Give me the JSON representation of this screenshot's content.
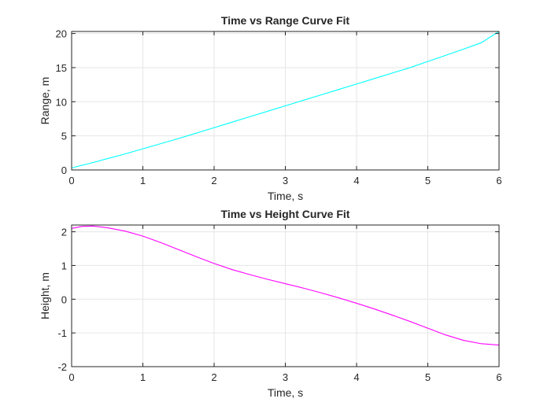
{
  "chart_data": [
    {
      "type": "line",
      "title": "Time vs Range Curve Fit",
      "xlabel": "Time, s",
      "ylabel": "Range, m",
      "xlim": [
        0,
        6
      ],
      "ylim": [
        0,
        20.3
      ],
      "xticks": [
        "0",
        "1",
        "2",
        "3",
        "4",
        "5",
        "6"
      ],
      "yticks": [
        "0",
        "5",
        "10",
        "15",
        "20"
      ],
      "grid": true,
      "series": [
        {
          "color": "#00ffff",
          "x": [
            0,
            0.25,
            0.5,
            0.75,
            1,
            1.25,
            1.5,
            1.75,
            2,
            2.25,
            2.5,
            2.75,
            3,
            3.25,
            3.5,
            3.75,
            4,
            4.25,
            4.5,
            4.75,
            5,
            5.25,
            5.5,
            5.75,
            6
          ],
          "y": [
            0.3,
            0.95,
            1.65,
            2.35,
            3.1,
            3.85,
            4.6,
            5.4,
            6.2,
            7.0,
            7.8,
            8.6,
            9.4,
            10.2,
            11.0,
            11.8,
            12.6,
            13.4,
            14.2,
            15.0,
            15.9,
            16.8,
            17.7,
            18.65,
            20.3
          ]
        }
      ]
    },
    {
      "type": "line",
      "title": "Time vs Height Curve Fit",
      "xlabel": "Time, s",
      "ylabel": "Height, m",
      "xlim": [
        0,
        6
      ],
      "ylim": [
        -2,
        2.2
      ],
      "xticks": [
        "0",
        "1",
        "2",
        "3",
        "4",
        "5",
        "6"
      ],
      "yticks": [
        "-2",
        "-1",
        "0",
        "1",
        "2"
      ],
      "grid": true,
      "series": [
        {
          "color": "#ff00ff",
          "x": [
            0,
            0.15,
            0.3,
            0.5,
            0.75,
            1,
            1.25,
            1.5,
            1.75,
            2,
            2.25,
            2.5,
            2.75,
            3,
            3.25,
            3.5,
            3.75,
            4,
            4.25,
            4.5,
            4.75,
            5,
            5.25,
            5.5,
            5.75,
            6
          ],
          "y": [
            2.1,
            2.16,
            2.17,
            2.12,
            2.02,
            1.87,
            1.68,
            1.47,
            1.26,
            1.06,
            0.88,
            0.73,
            0.59,
            0.46,
            0.33,
            0.19,
            0.04,
            -0.12,
            -0.29,
            -0.47,
            -0.66,
            -0.86,
            -1.06,
            -1.22,
            -1.32,
            -1.36
          ]
        }
      ]
    }
  ]
}
